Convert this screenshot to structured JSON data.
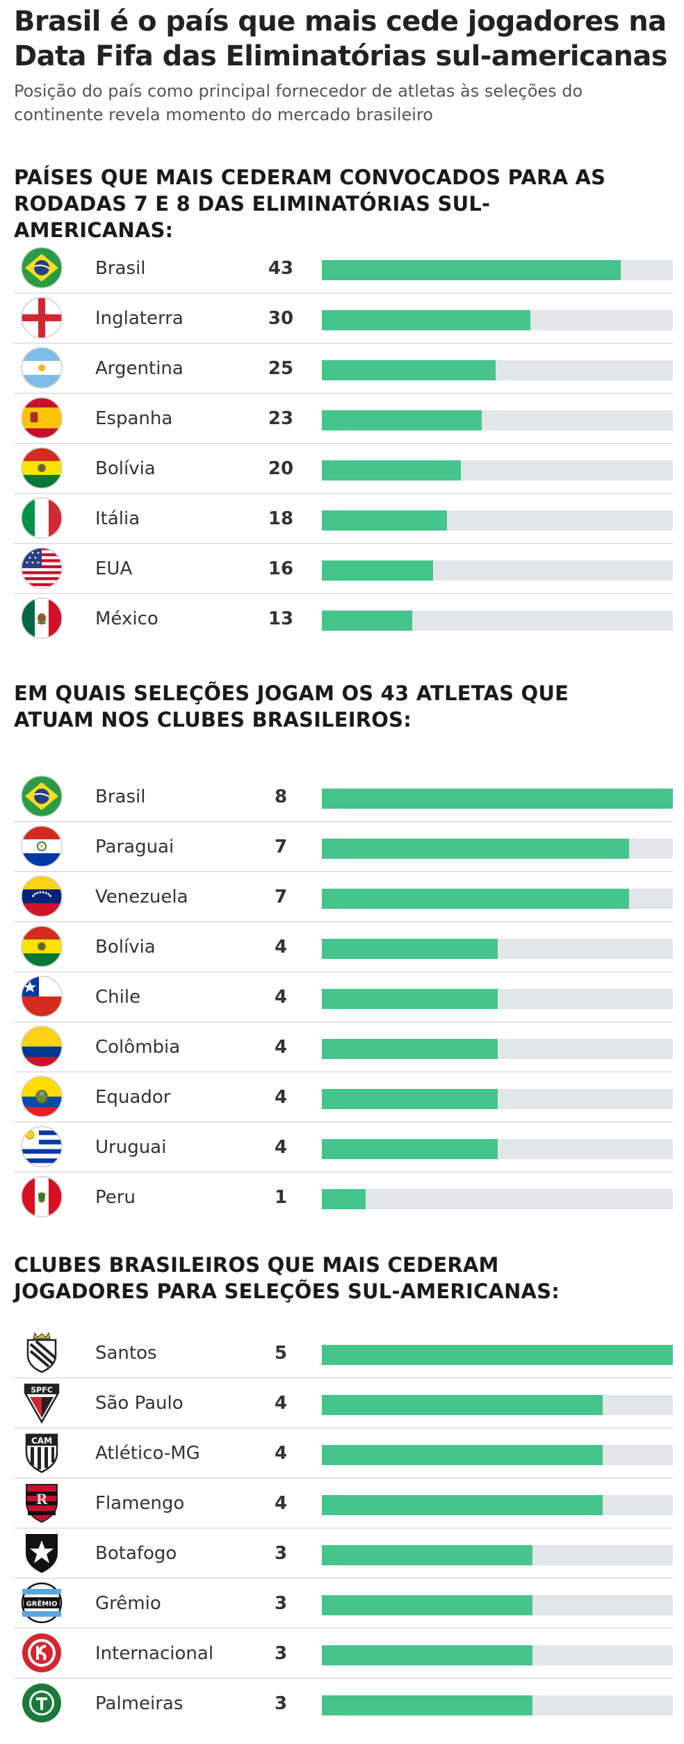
{
  "title": "Brasil é o país que mais cede jogadores na Data Fifa das Eliminatórias sul-americanas",
  "subtitle": "Posição do país como principal fornecedor de atletas às seleções do continente revela momento do mercado brasileiro",
  "colors": {
    "bar": "#45c48c",
    "track": "#e3e6e9",
    "separator": "#cfcfcf"
  },
  "chart_data": [
    {
      "type": "bar",
      "orientation": "horizontal",
      "title": "PAÍSES QUE MAIS CEDERAM CONVOCADOS PARA AS RODADAS 7 E 8 DAS ELIMINATÓRIAS SUL-AMERICANAS:",
      "categories": [
        "Brasil",
        "Inglaterra",
        "Argentina",
        "Espanha",
        "Bolívia",
        "Itália",
        "EUA",
        "México"
      ],
      "values": [
        43,
        30,
        25,
        23,
        20,
        18,
        16,
        13
      ],
      "icons": [
        "brazil-flag-icon",
        "england-flag-icon",
        "argentina-flag-icon",
        "spain-flag-icon",
        "bolivia-flag-icon",
        "italy-flag-icon",
        "usa-flag-icon",
        "mexico-flag-icon"
      ],
      "xlim": [
        0,
        50.5
      ]
    },
    {
      "type": "bar",
      "orientation": "horizontal",
      "title": "EM QUAIS SELEÇÕES JOGAM OS 43 ATLETAS QUE ATUAM NOS CLUBES BRASILEIROS:",
      "categories": [
        "Brasil",
        "Paraguai",
        "Venezuela",
        "Bolívia",
        "Chile",
        "Colômbia",
        "Equador",
        "Uruguai",
        "Peru"
      ],
      "values": [
        8,
        7,
        7,
        4,
        4,
        4,
        4,
        4,
        1
      ],
      "icons": [
        "brazil-flag-icon",
        "paraguay-flag-icon",
        "venezuela-flag-icon",
        "bolivia-flag-icon",
        "chile-flag-icon",
        "colombia-flag-icon",
        "ecuador-flag-icon",
        "uruguay-flag-icon",
        "peru-flag-icon"
      ],
      "xlim": [
        0,
        8
      ]
    },
    {
      "type": "bar",
      "orientation": "horizontal",
      "title": "CLUBES BRASILEIROS QUE MAIS CEDERAM JOGADORES PARA SELEÇÕES SUL-AMERICANAS:",
      "categories": [
        "Santos",
        "São Paulo",
        "Atlético-MG",
        "Flamengo",
        "Botafogo",
        "Grêmio",
        "Internacional",
        "Palmeiras"
      ],
      "values": [
        5,
        4,
        4,
        4,
        3,
        3,
        3,
        3
      ],
      "icons": [
        "santos-crest-icon",
        "sao-paulo-crest-icon",
        "atletico-mg-crest-icon",
        "flamengo-crest-icon",
        "botafogo-crest-icon",
        "gremio-crest-icon",
        "internacional-crest-icon",
        "palmeiras-crest-icon"
      ],
      "xlim": [
        0,
        5
      ]
    }
  ],
  "crest_text": {
    "sao-paulo-crest-icon": "SPFC",
    "atletico-mg-crest-icon": "CAM",
    "gremio-crest-icon": "GRÊMIO"
  }
}
